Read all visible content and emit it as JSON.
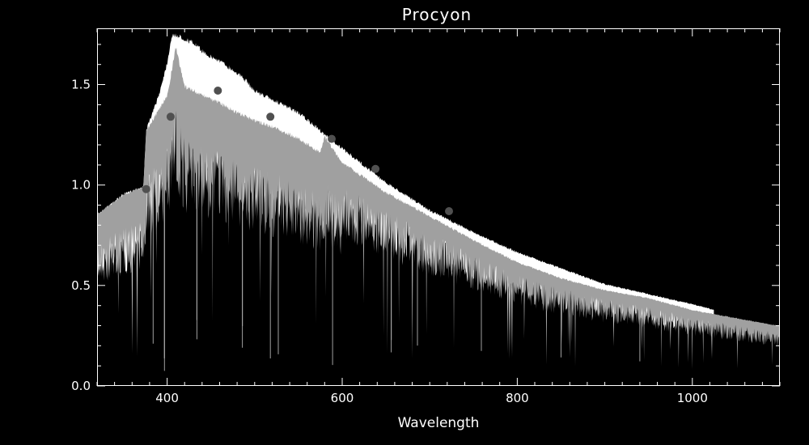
{
  "chart_data": {
    "type": "line",
    "title": "Procyon",
    "xlabel": "Wavelength",
    "ylabel": "",
    "xlim": [
      320,
      1100
    ],
    "ylim": [
      0.0,
      1.78
    ],
    "x_ticks": [
      400,
      600,
      800,
      1000
    ],
    "x_tick_labels": [
      "400",
      "600",
      "800",
      "1000"
    ],
    "x_minor_step": 20,
    "y_ticks": [
      0.0,
      0.5,
      1.0,
      1.5
    ],
    "y_tick_labels": [
      "0.0",
      "0.5",
      "1.0",
      "1.5"
    ],
    "y_minor_step": 0.1,
    "grid": false,
    "series": [
      {
        "color": "#ffffff",
        "x": [
          320,
          350,
          373,
          376,
          390,
          400,
          405,
          410,
          420,
          430,
          440,
          450,
          460,
          470,
          480,
          490,
          500,
          550,
          600,
          650,
          700,
          750,
          800,
          850,
          900,
          950,
          1000,
          1025
        ],
        "values": [
          0.86,
          0.96,
          1.0,
          1.28,
          1.45,
          1.62,
          1.75,
          1.76,
          1.74,
          1.72,
          1.68,
          1.65,
          1.63,
          1.6,
          1.57,
          1.53,
          1.48,
          1.37,
          1.19,
          1.02,
          0.88,
          0.77,
          0.67,
          0.59,
          0.51,
          0.46,
          0.41,
          0.38
        ]
      },
      {
        "color": "#a0a0a0",
        "x": [
          320,
          350,
          373,
          376,
          390,
          400,
          410,
          420,
          440,
          460,
          480,
          500,
          520,
          550,
          575,
          580,
          600,
          650,
          700,
          750,
          800,
          850,
          900,
          950,
          1000,
          1050,
          1100
        ],
        "values": [
          0.86,
          0.96,
          1.0,
          1.28,
          1.38,
          1.45,
          1.7,
          1.5,
          1.46,
          1.42,
          1.37,
          1.33,
          1.3,
          1.24,
          1.17,
          1.25,
          1.12,
          0.97,
          0.85,
          0.73,
          0.62,
          0.54,
          0.48,
          0.44,
          0.38,
          0.34,
          0.3
        ]
      },
      {
        "type": "scatter",
        "color": "#505050",
        "x": [
          376,
          404,
          458,
          518,
          588,
          638,
          722
        ],
        "values": [
          0.98,
          1.34,
          1.47,
          1.34,
          1.23,
          1.08,
          0.87
        ]
      }
    ]
  }
}
